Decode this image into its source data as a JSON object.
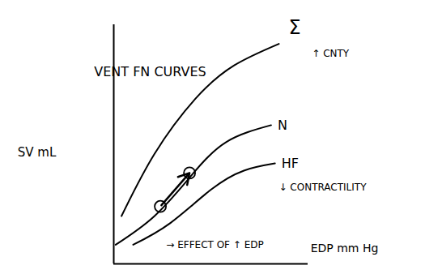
{
  "chart_data": {
    "type": "line",
    "title": "VENT FN CURVES",
    "x_label": "EDP mm Hg",
    "y_label": "SV mL",
    "xlim": [
      0,
      100
    ],
    "ylim": [
      0,
      100
    ],
    "xticks": [],
    "yticks": [],
    "tick_labels": false,
    "grid": false,
    "series": [
      {
        "name": "Σ",
        "color": "#000000",
        "x": [
          4,
          21,
          42,
          62,
          85
        ],
        "values": [
          20,
          46,
          69,
          83,
          92
        ]
      },
      {
        "name": "N",
        "color": "#000000",
        "x": [
          1,
          21,
          40,
          58,
          81
        ],
        "values": [
          8,
          20,
          37,
          51,
          58
        ]
      },
      {
        "name": "HF",
        "color": "#000000",
        "x": [
          10,
          29,
          50,
          67,
          83
        ],
        "values": [
          8,
          17,
          31,
          39,
          42
        ]
      }
    ],
    "annotations": [
      {
        "text": "↑ CNTY",
        "x": 102,
        "y": 88
      },
      {
        "text": "↓ CONTRACTILITY",
        "x": 85,
        "y": 32
      },
      {
        "text": "→ EFFECT OF ↑ EDP",
        "x": 27,
        "y": 8
      }
    ],
    "effect_points": {
      "x": [
        24,
        39
      ],
      "y": [
        24,
        38
      ]
    }
  }
}
